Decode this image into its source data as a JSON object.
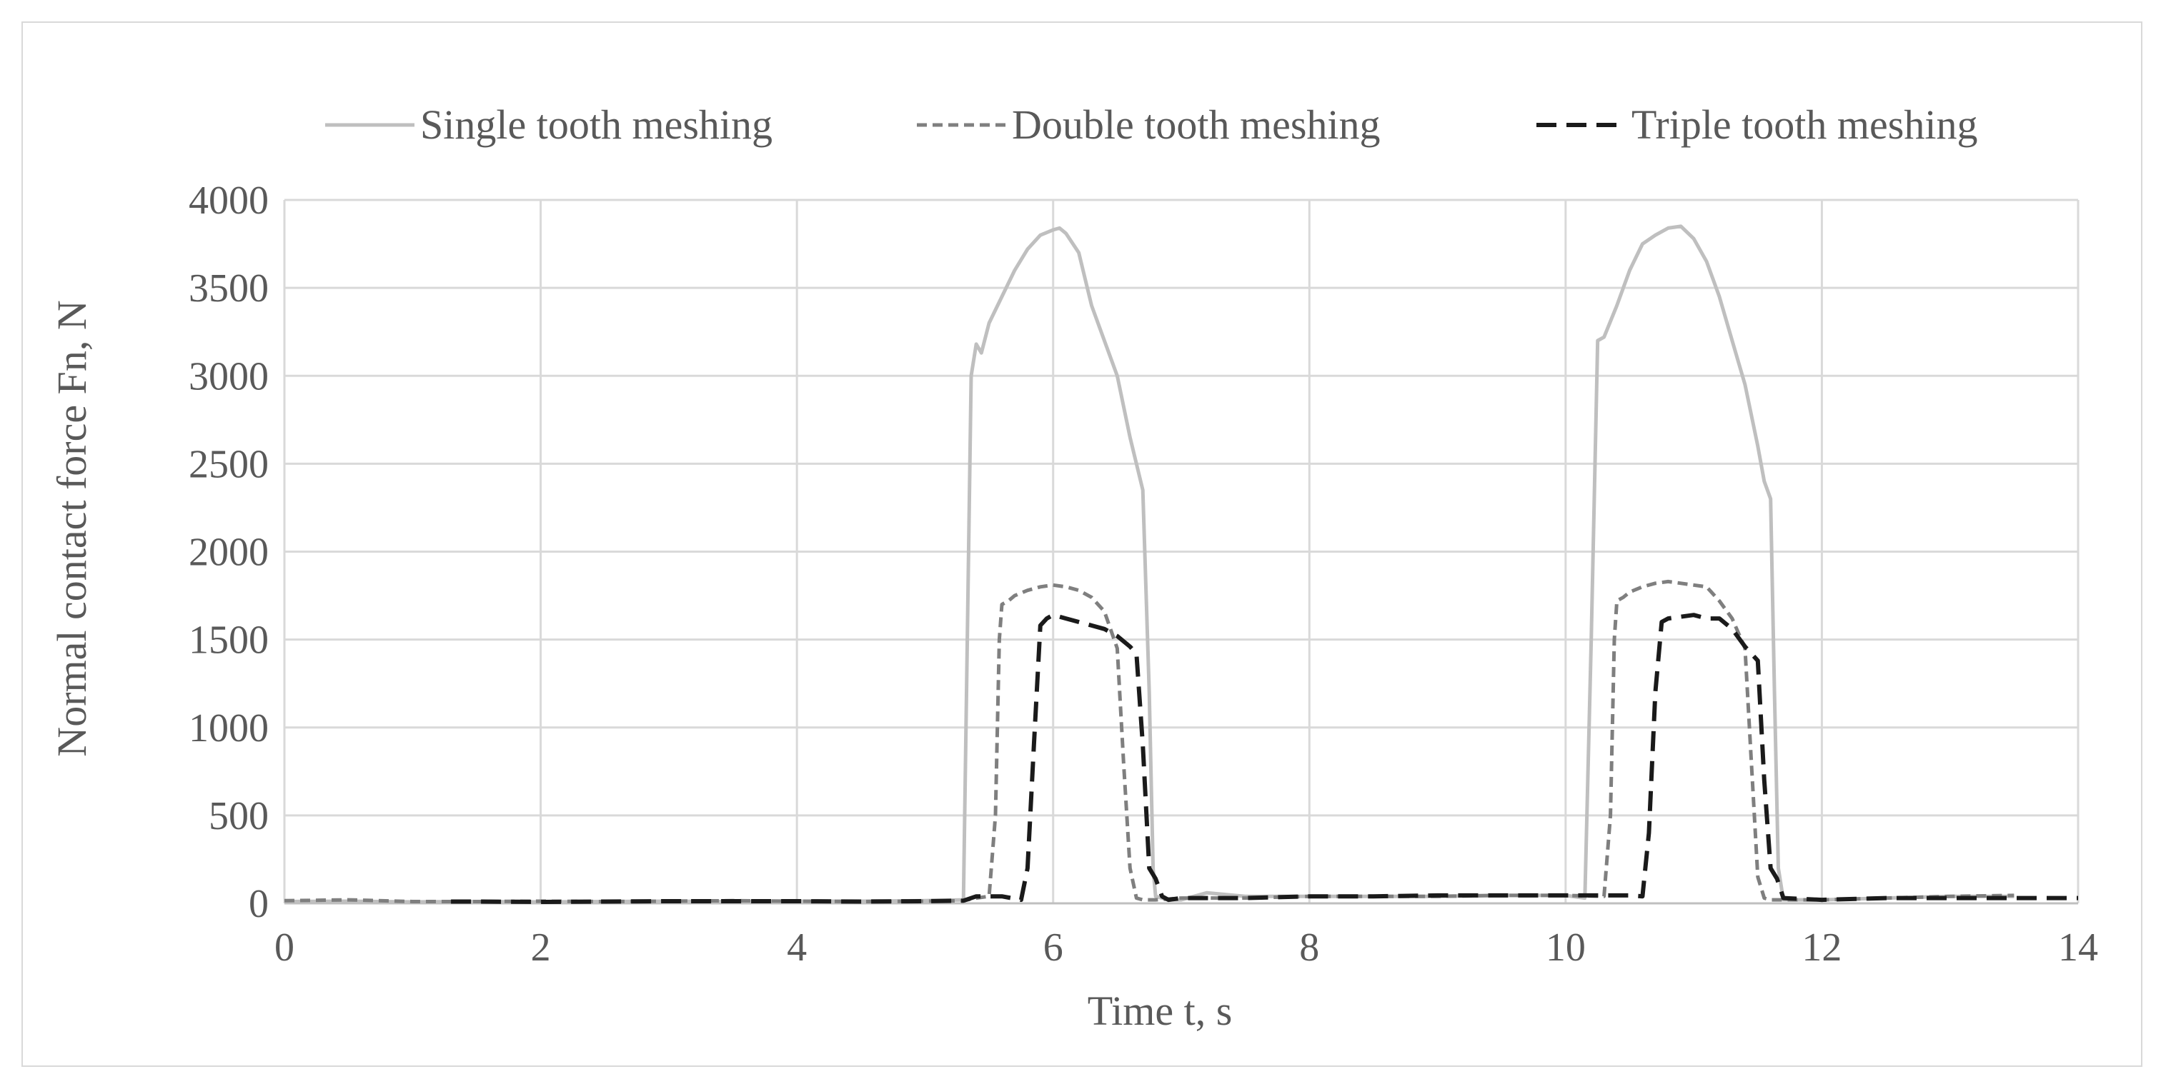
{
  "chart_data": {
    "type": "line",
    "title": "",
    "xlabel": "Time t, s",
    "ylabel": "Normal contact force Fn, N",
    "xlim": [
      0,
      14
    ],
    "ylim": [
      0,
      4000
    ],
    "xticks": [
      0,
      2,
      4,
      6,
      8,
      10,
      12,
      14
    ],
    "yticks": [
      0,
      500,
      1000,
      1500,
      2000,
      2500,
      3000,
      3500,
      4000
    ],
    "grid": true,
    "legend_position": "top",
    "series": [
      {
        "name": "Single tooth meshing",
        "color": "#bfbfbf",
        "dash": "solid",
        "points": [
          [
            0,
            10
          ],
          [
            0.5,
            12
          ],
          [
            1,
            8
          ],
          [
            1.5,
            10
          ],
          [
            2,
            8
          ],
          [
            2.5,
            10
          ],
          [
            3,
            12
          ],
          [
            3.5,
            10
          ],
          [
            4,
            12
          ],
          [
            4.5,
            12
          ],
          [
            5,
            15
          ],
          [
            5.3,
            20
          ],
          [
            5.33,
            1500
          ],
          [
            5.36,
            3000
          ],
          [
            5.4,
            3180
          ],
          [
            5.44,
            3130
          ],
          [
            5.5,
            3300
          ],
          [
            5.6,
            3450
          ],
          [
            5.7,
            3600
          ],
          [
            5.8,
            3720
          ],
          [
            5.9,
            3800
          ],
          [
            6.0,
            3830
          ],
          [
            6.05,
            3840
          ],
          [
            6.1,
            3810
          ],
          [
            6.2,
            3700
          ],
          [
            6.3,
            3400
          ],
          [
            6.4,
            3200
          ],
          [
            6.5,
            3000
          ],
          [
            6.6,
            2650
          ],
          [
            6.7,
            2350
          ],
          [
            6.75,
            1200
          ],
          [
            6.78,
            200
          ],
          [
            6.8,
            40
          ],
          [
            6.9,
            20
          ],
          [
            7.0,
            20
          ],
          [
            7.2,
            60
          ],
          [
            7.5,
            40
          ],
          [
            8,
            40
          ],
          [
            8.5,
            40
          ],
          [
            9,
            40
          ],
          [
            9.5,
            45
          ],
          [
            10,
            45
          ],
          [
            10.15,
            30
          ],
          [
            10.2,
            1500
          ],
          [
            10.25,
            3200
          ],
          [
            10.3,
            3220
          ],
          [
            10.4,
            3400
          ],
          [
            10.5,
            3600
          ],
          [
            10.6,
            3750
          ],
          [
            10.7,
            3800
          ],
          [
            10.8,
            3840
          ],
          [
            10.9,
            3850
          ],
          [
            11.0,
            3780
          ],
          [
            11.1,
            3650
          ],
          [
            11.2,
            3450
          ],
          [
            11.3,
            3200
          ],
          [
            11.4,
            2950
          ],
          [
            11.5,
            2600
          ],
          [
            11.55,
            2400
          ],
          [
            11.6,
            2300
          ],
          [
            11.63,
            1200
          ],
          [
            11.66,
            200
          ],
          [
            11.7,
            20
          ],
          [
            12,
            20
          ],
          [
            12.5,
            30
          ],
          [
            13,
            40
          ],
          [
            13.5,
            40
          ]
        ]
      },
      {
        "name": "Double tooth meshing",
        "color": "#7f7f7f",
        "dash": "medium",
        "points": [
          [
            0,
            15
          ],
          [
            0.5,
            20
          ],
          [
            1,
            10
          ],
          [
            1.5,
            10
          ],
          [
            2,
            12
          ],
          [
            2.5,
            10
          ],
          [
            3,
            12
          ],
          [
            3.5,
            15
          ],
          [
            4,
            12
          ],
          [
            4.5,
            10
          ],
          [
            5,
            12
          ],
          [
            5.3,
            15
          ],
          [
            5.4,
            30
          ],
          [
            5.5,
            40
          ],
          [
            5.55,
            500
          ],
          [
            5.58,
            1500
          ],
          [
            5.6,
            1700
          ],
          [
            5.65,
            1720
          ],
          [
            5.7,
            1750
          ],
          [
            5.8,
            1780
          ],
          [
            5.9,
            1800
          ],
          [
            6.0,
            1810
          ],
          [
            6.1,
            1800
          ],
          [
            6.2,
            1780
          ],
          [
            6.3,
            1740
          ],
          [
            6.4,
            1660
          ],
          [
            6.5,
            1450
          ],
          [
            6.55,
            800
          ],
          [
            6.6,
            200
          ],
          [
            6.65,
            30
          ],
          [
            6.7,
            20
          ],
          [
            6.8,
            20
          ],
          [
            7,
            30
          ],
          [
            7.5,
            30
          ],
          [
            8,
            40
          ],
          [
            8.5,
            40
          ],
          [
            9,
            40
          ],
          [
            9.5,
            45
          ],
          [
            10,
            45
          ],
          [
            10.3,
            40
          ],
          [
            10.35,
            500
          ],
          [
            10.38,
            1500
          ],
          [
            10.4,
            1720
          ],
          [
            10.45,
            1740
          ],
          [
            10.5,
            1770
          ],
          [
            10.6,
            1800
          ],
          [
            10.7,
            1820
          ],
          [
            10.8,
            1830
          ],
          [
            10.9,
            1820
          ],
          [
            11.0,
            1810
          ],
          [
            11.1,
            1800
          ],
          [
            11.2,
            1720
          ],
          [
            11.3,
            1620
          ],
          [
            11.4,
            1450
          ],
          [
            11.45,
            800
          ],
          [
            11.5,
            150
          ],
          [
            11.55,
            30
          ],
          [
            11.6,
            20
          ],
          [
            12,
            20
          ],
          [
            12.5,
            30
          ],
          [
            13,
            40
          ],
          [
            13.5,
            45
          ]
        ]
      },
      {
        "name": "Triple tooth meshing",
        "color": "#1a1a1a",
        "dash": "long",
        "points": [
          [
            1.3,
            10
          ],
          [
            1.5,
            10
          ],
          [
            2,
            8
          ],
          [
            2.5,
            10
          ],
          [
            3,
            12
          ],
          [
            3.5,
            12
          ],
          [
            4,
            12
          ],
          [
            4.5,
            10
          ],
          [
            5,
            12
          ],
          [
            5.3,
            15
          ],
          [
            5.4,
            40
          ],
          [
            5.6,
            40
          ],
          [
            5.75,
            20
          ],
          [
            5.8,
            200
          ],
          [
            5.85,
            900
          ],
          [
            5.9,
            1580
          ],
          [
            5.95,
            1620
          ],
          [
            6.0,
            1640
          ],
          [
            6.1,
            1620
          ],
          [
            6.2,
            1600
          ],
          [
            6.3,
            1580
          ],
          [
            6.4,
            1560
          ],
          [
            6.5,
            1520
          ],
          [
            6.6,
            1460
          ],
          [
            6.65,
            1420
          ],
          [
            6.7,
            900
          ],
          [
            6.75,
            200
          ],
          [
            6.8,
            140
          ],
          [
            6.85,
            40
          ],
          [
            6.9,
            20
          ],
          [
            7,
            30
          ],
          [
            7.5,
            30
          ],
          [
            8,
            40
          ],
          [
            8.5,
            40
          ],
          [
            9,
            45
          ],
          [
            9.5,
            45
          ],
          [
            10,
            45
          ],
          [
            10.5,
            45
          ],
          [
            10.6,
            40
          ],
          [
            10.65,
            400
          ],
          [
            10.7,
            1200
          ],
          [
            10.75,
            1600
          ],
          [
            10.8,
            1620
          ],
          [
            10.9,
            1630
          ],
          [
            11.0,
            1640
          ],
          [
            11.1,
            1620
          ],
          [
            11.2,
            1620
          ],
          [
            11.3,
            1560
          ],
          [
            11.4,
            1460
          ],
          [
            11.5,
            1380
          ],
          [
            11.55,
            700
          ],
          [
            11.6,
            200
          ],
          [
            11.65,
            140
          ],
          [
            11.7,
            30
          ],
          [
            12,
            20
          ],
          [
            12.5,
            30
          ],
          [
            13,
            30
          ],
          [
            13.5,
            30
          ],
          [
            14,
            30
          ]
        ]
      }
    ]
  }
}
